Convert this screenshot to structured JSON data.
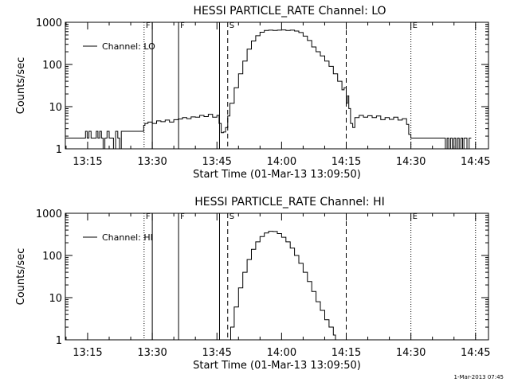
{
  "footer_timestamp": "1-Mar-2013 07:45",
  "chart_data": [
    {
      "type": "line",
      "title": "HESSI PARTICLE_RATE Channel: LO",
      "xlabel": "Start Time (01-Mar-13 13:09:50)",
      "ylabel": "Counts/sec",
      "yscale": "log",
      "ylim": [
        1,
        1000
      ],
      "yticks": [
        "1",
        "10",
        "100",
        "1000"
      ],
      "xlim_minutes": [
        9.83,
        108
      ],
      "xticks": [
        {
          "label": "13:15",
          "minute": 15
        },
        {
          "label": "13:30",
          "minute": 30
        },
        {
          "label": "13:45",
          "minute": 45
        },
        {
          "label": "14:00",
          "minute": 60
        },
        {
          "label": "14:15",
          "minute": 75
        },
        {
          "label": "14:30",
          "minute": 90
        },
        {
          "label": "14:45",
          "minute": 105
        }
      ],
      "legend": {
        "label": "Channel: LO",
        "position": "top-left"
      },
      "markers": [
        {
          "label": "F",
          "minute": 28.1,
          "style": "dotted"
        },
        {
          "label": "",
          "minute": 30.0,
          "style": "solid"
        },
        {
          "label": "F",
          "minute": 36.1,
          "style": "solid"
        },
        {
          "label": "",
          "minute": 45.6,
          "style": "solid"
        },
        {
          "label": "S",
          "minute": 47.5,
          "style": "dashed"
        },
        {
          "label": "",
          "minute": 75.0,
          "style": "dashed"
        },
        {
          "label": "E",
          "minute": 90.0,
          "style": "dotted"
        },
        {
          "label": "",
          "minute": 105.0,
          "style": "dotted"
        }
      ],
      "series": [
        {
          "x": [
            9.83,
            14.0,
            14.5,
            14.9,
            15.3,
            15.8,
            16.2,
            17.0,
            17.4,
            17.8,
            18.2,
            18.6,
            19.0,
            19.5,
            20.0,
            20.5,
            21.0,
            21.5,
            22.0,
            22.4,
            22.8,
            23.5,
            24.5,
            25.5,
            26.5,
            27.5,
            28.0,
            28.3,
            29.0,
            30.0,
            31.0,
            32.0,
            33.0,
            34.0,
            35.0,
            36.0,
            37.0,
            38.0,
            39.0,
            40.0,
            41.0,
            42.0,
            43.0,
            44.0,
            45.0,
            45.5,
            46.0,
            46.5,
            47.0,
            47.5,
            48.0,
            49.0,
            50.0,
            51.0,
            52.0,
            53.0,
            54.0,
            55.0,
            56.0,
            57.0,
            58.0,
            59.0,
            60.0,
            61.0,
            62.0,
            63.0,
            64.0,
            65.0,
            66.0,
            67.0,
            68.0,
            69.0,
            70.0,
            71.0,
            72.0,
            73.0,
            74.0,
            74.5,
            75.0,
            75.3,
            75.6,
            76.0,
            76.5,
            77.0,
            78.0,
            79.0,
            80.0,
            81.0,
            82.0,
            83.0,
            84.0,
            85.0,
            86.0,
            87.0,
            88.0,
            89.0,
            89.5,
            90.0,
            91.0,
            93.0,
            95.0,
            97.0,
            98.0,
            98.4,
            98.8,
            99.2,
            99.6,
            100.0,
            100.4,
            100.8,
            101.2,
            101.6,
            102.0,
            102.3,
            102.6,
            103.0,
            103.5,
            104.0
          ],
          "y": [
            1.8,
            1.8,
            2.6,
            1.8,
            2.6,
            1.8,
            1.8,
            2.6,
            1.8,
            2.6,
            1.8,
            1.0,
            1.8,
            2.6,
            1.8,
            1.8,
            1.0,
            2.6,
            1.8,
            1.0,
            2.6,
            2.6,
            2.6,
            2.6,
            2.6,
            2.6,
            3.6,
            4.0,
            4.3,
            4.0,
            4.6,
            4.4,
            4.8,
            4.3,
            4.9,
            5.1,
            5.5,
            5.2,
            5.7,
            5.6,
            6.2,
            5.8,
            6.6,
            5.6,
            6.2,
            4.0,
            2.4,
            2.5,
            3.2,
            6.0,
            12,
            28,
            60,
            120,
            230,
            360,
            480,
            580,
            640,
            650,
            640,
            650,
            660,
            640,
            650,
            620,
            570,
            470,
            370,
            260,
            200,
            160,
            120,
            90,
            60,
            40,
            25,
            28,
            12,
            18,
            9,
            4.0,
            3.2,
            5.5,
            6.2,
            5.6,
            6.1,
            5.5,
            6.0,
            4.9,
            5.5,
            5.0,
            5.6,
            4.8,
            5.2,
            3.8,
            2.2,
            1.8,
            1.8,
            1.8,
            1.8,
            1.8,
            1.0,
            1.8,
            1.0,
            1.8,
            1.0,
            1.8,
            1.0,
            1.8,
            1.0,
            1.8,
            1.0,
            1.8,
            1.8,
            1.0,
            1.8,
            1.8
          ]
        }
      ]
    },
    {
      "type": "line",
      "title": "HESSI PARTICLE_RATE Channel: HI",
      "xlabel": "Start Time (01-Mar-13 13:09:50)",
      "ylabel": "Counts/sec",
      "yscale": "log",
      "ylim": [
        1,
        1000
      ],
      "yticks": [
        "1",
        "10",
        "100",
        "1000"
      ],
      "xlim_minutes": [
        9.83,
        108
      ],
      "xticks": [
        {
          "label": "13:15",
          "minute": 15
        },
        {
          "label": "13:30",
          "minute": 30
        },
        {
          "label": "13:45",
          "minute": 45
        },
        {
          "label": "14:00",
          "minute": 60
        },
        {
          "label": "14:15",
          "minute": 75
        },
        {
          "label": "14:30",
          "minute": 90
        },
        {
          "label": "14:45",
          "minute": 105
        }
      ],
      "legend": {
        "label": "Channel: HI",
        "position": "top-left"
      },
      "markers": [
        {
          "label": "F",
          "minute": 28.1,
          "style": "dotted"
        },
        {
          "label": "",
          "minute": 30.0,
          "style": "solid"
        },
        {
          "label": "F",
          "minute": 36.1,
          "style": "solid"
        },
        {
          "label": "",
          "minute": 45.6,
          "style": "solid"
        },
        {
          "label": "S",
          "minute": 47.5,
          "style": "dashed"
        },
        {
          "label": "",
          "minute": 75.0,
          "style": "dashed"
        },
        {
          "label": "E",
          "minute": 90.0,
          "style": "dotted"
        },
        {
          "label": "",
          "minute": 105.0,
          "style": "dotted"
        }
      ],
      "series": [
        {
          "x": [
            47.7,
            48.2,
            49.0,
            50.0,
            51.0,
            52.0,
            53.0,
            54.0,
            55.0,
            56.0,
            57.0,
            58.0,
            59.0,
            60.0,
            61.0,
            62.0,
            63.0,
            64.0,
            65.0,
            66.0,
            67.0,
            68.0,
            69.0,
            70.0,
            71.0,
            72.0,
            72.5
          ],
          "y": [
            1.0,
            2.0,
            6.0,
            17,
            40,
            80,
            140,
            210,
            280,
            340,
            375,
            370,
            330,
            270,
            210,
            150,
            100,
            65,
            40,
            24,
            14,
            8,
            5,
            3,
            2,
            1.3,
            1.0
          ]
        }
      ]
    }
  ]
}
